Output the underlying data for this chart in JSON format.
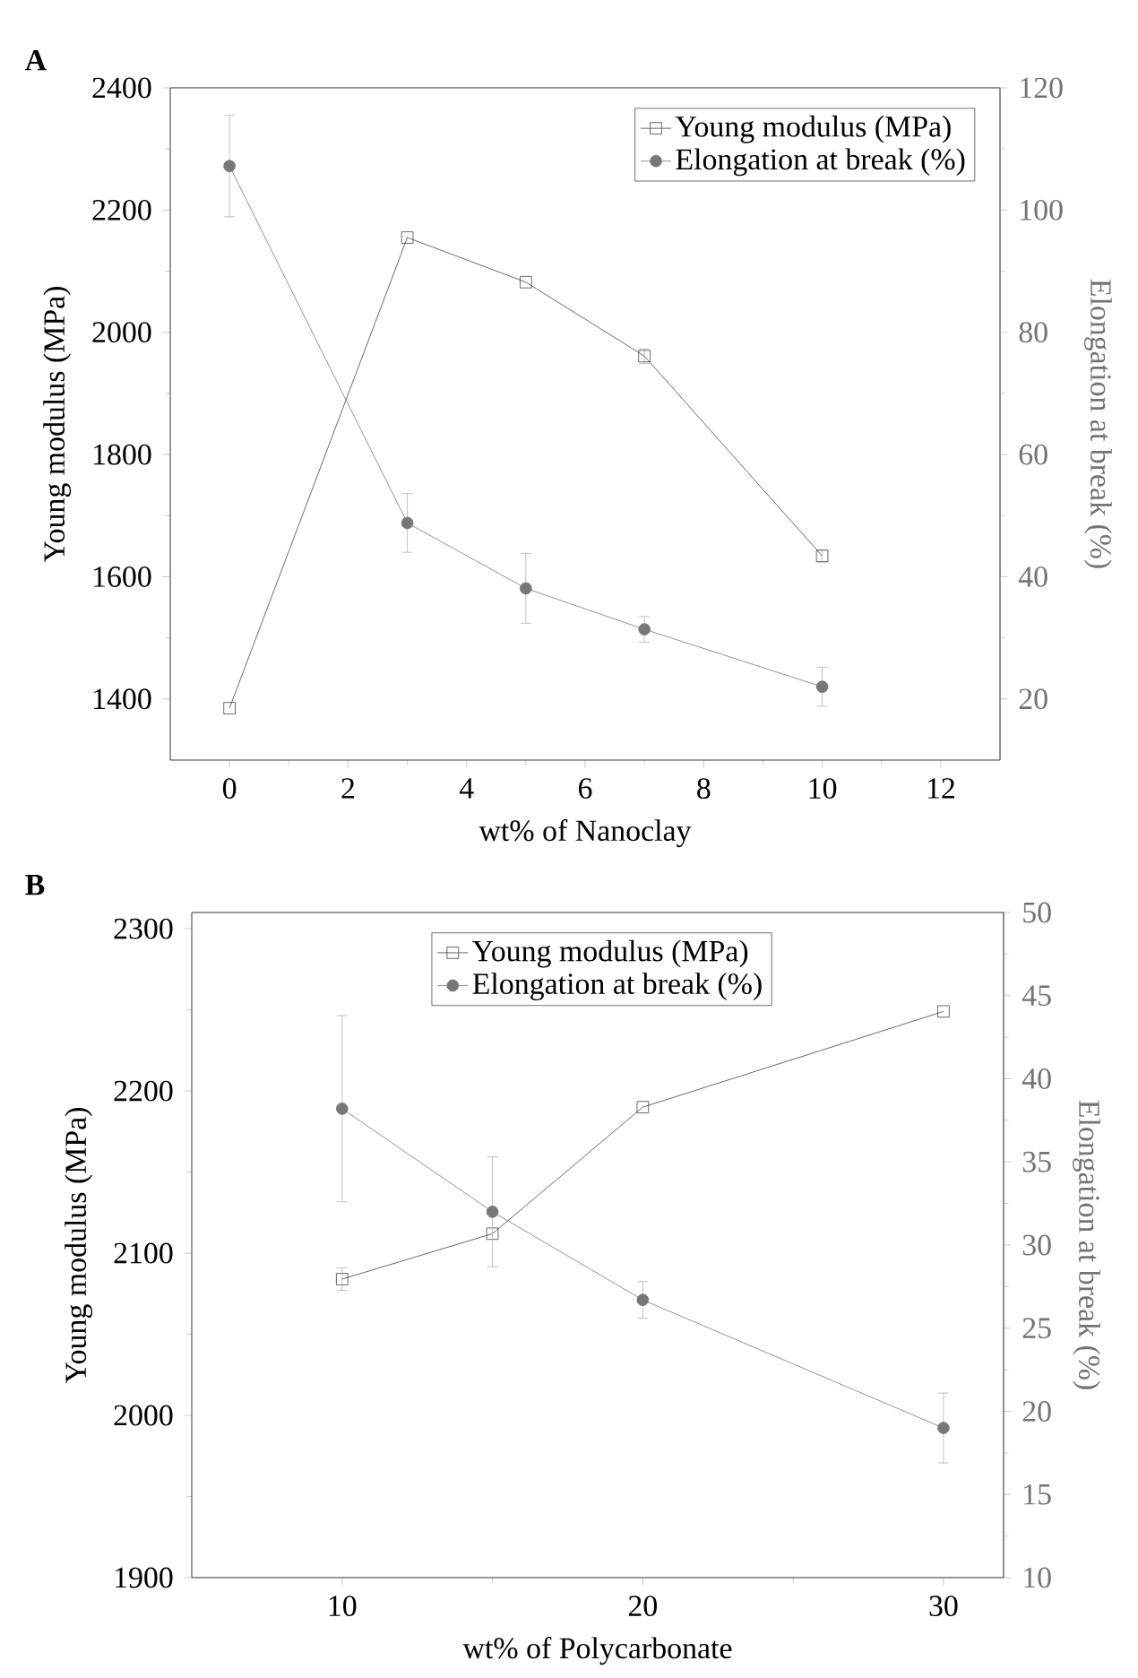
{
  "chart_data": [
    {
      "type": "line",
      "title": "A",
      "xlabel": "wt% of Nanoclay",
      "ylabel": "Young modulus (MPa)",
      "y2label": "Elongation at break (%)",
      "x": [
        0,
        3,
        5,
        7,
        10
      ],
      "xlim": [
        -1,
        13
      ],
      "xticks": [
        0,
        2,
        4,
        6,
        8,
        10,
        12
      ],
      "ylim": [
        1300,
        2400
      ],
      "yticks": [
        1400,
        1600,
        1800,
        2000,
        2200,
        2400
      ],
      "y2lim": [
        10,
        120
      ],
      "y2ticks": [
        20,
        40,
        60,
        80,
        100,
        120
      ],
      "legend": "top right",
      "series": [
        {
          "name": "Young modulus (MPa)",
          "color": "#444444",
          "marker": "square",
          "values": [
            1385,
            2155,
            2082,
            1961,
            1634
          ],
          "errors": [
            null,
            null,
            null,
            12,
            10
          ]
        },
        {
          "name": "Elongation at break (%)",
          "color": "#777777",
          "marker": "circle",
          "axis": "y2",
          "values": [
            107.2,
            48.8,
            38.1,
            31.4,
            22.0
          ],
          "errors": [
            8.3,
            4.8,
            5.7,
            2.1,
            3.2
          ]
        }
      ]
    },
    {
      "type": "line",
      "title": "B",
      "xlabel": "wt% of Polycarbonate",
      "ylabel": "Young modulus (MPa)",
      "y2label": "Elongation at break (%)",
      "x": [
        10,
        15,
        20,
        30
      ],
      "xlim": [
        5,
        32
      ],
      "xticks": [
        10,
        20,
        30
      ],
      "ylim": [
        1900,
        2310
      ],
      "yticks": [
        1900,
        2000,
        2100,
        2200,
        2300
      ],
      "y2lim": [
        10,
        50
      ],
      "y2ticks": [
        10,
        15,
        20,
        25,
        30,
        35,
        40,
        45,
        50
      ],
      "legend": "top",
      "series": [
        {
          "name": "Young modulus (MPa)",
          "color": "#444444",
          "marker": "square",
          "values": [
            2084,
            2112,
            2190,
            2249
          ],
          "errors": [
            7,
            null,
            null,
            null
          ]
        },
        {
          "name": "Elongation at break (%)",
          "color": "#777777",
          "marker": "circle",
          "axis": "y2",
          "values": [
            38.2,
            32.0,
            26.7,
            19.0
          ],
          "errors": [
            5.6,
            3.3,
            1.1,
            2.1
          ]
        }
      ]
    }
  ]
}
